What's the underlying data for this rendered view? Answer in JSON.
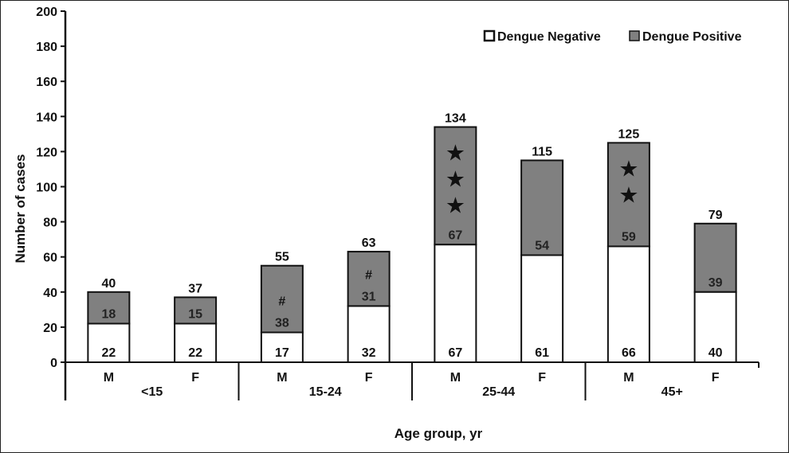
{
  "chart_data": {
    "type": "bar",
    "stacked": true,
    "title": "",
    "ylabel": "Number of cases",
    "xlabel": "Age group, yr",
    "ylim": [
      0,
      200
    ],
    "yticks": [
      0,
      20,
      40,
      60,
      80,
      100,
      120,
      140,
      160,
      180,
      200
    ],
    "groups": [
      "<15",
      "15-24",
      "25-44",
      "45+"
    ],
    "categories": [
      "M",
      "F",
      "M",
      "F",
      "M",
      "F",
      "M",
      "F"
    ],
    "group_of_category": [
      0,
      0,
      1,
      1,
      2,
      2,
      3,
      3
    ],
    "series": [
      {
        "name": "Dengue Negative",
        "color": "#ffffff",
        "values": [
          22,
          22,
          17,
          32,
          67,
          61,
          66,
          40
        ]
      },
      {
        "name": "Dengue Positive",
        "color": "#808080",
        "values": [
          18,
          15,
          38,
          31,
          67,
          54,
          59,
          39
        ]
      }
    ],
    "totals": [
      40,
      37,
      55,
      63,
      134,
      115,
      125,
      79
    ],
    "markers": [
      "",
      "",
      "#",
      "#",
      "★★★",
      "",
      "★★",
      ""
    ],
    "legend_position": "top-right"
  }
}
